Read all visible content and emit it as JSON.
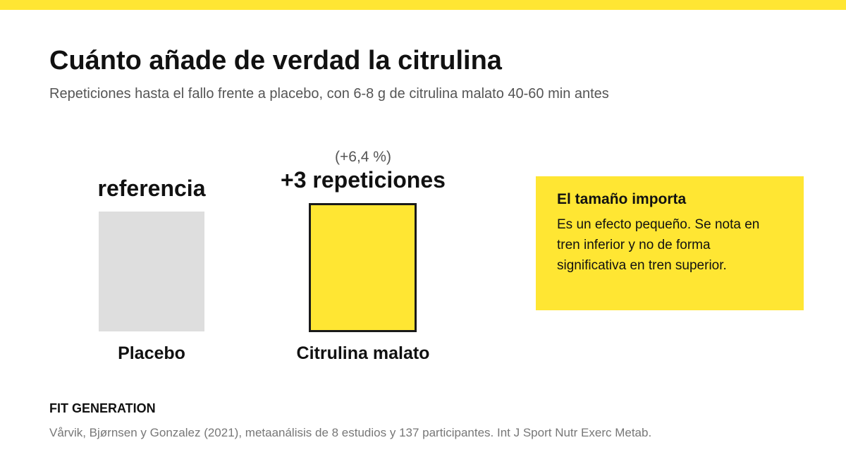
{
  "header": {
    "accent_color": "#FFE633",
    "title": "Cuánto añade de verdad la citrulina",
    "subtitle": "Repeticiones hasta el fallo frente a placebo, con 6-8 g de citrulina malato 40-60 min antes"
  },
  "chart_data": {
    "type": "bar",
    "categories": [
      "Placebo",
      "Citrulina malato"
    ],
    "values_text": [
      "referencia",
      "+3 repeticiones"
    ],
    "values_pct_text": [
      "",
      "(+6,4 %)"
    ],
    "colors": [
      "#DEDEDE",
      "#FFE633"
    ]
  },
  "callout": {
    "title": "El tamaño importa",
    "body": "Es un efecto pequeño. Se nota en tren inferior y no de forma significativa en tren superior."
  },
  "footer": {
    "brand": "FIT GENERATION",
    "source": "Vårvik, Bjørnsen y Gonzalez (2021), metaanálisis de 8 estudios y 137 participantes. Int J Sport Nutr Exerc Metab."
  }
}
